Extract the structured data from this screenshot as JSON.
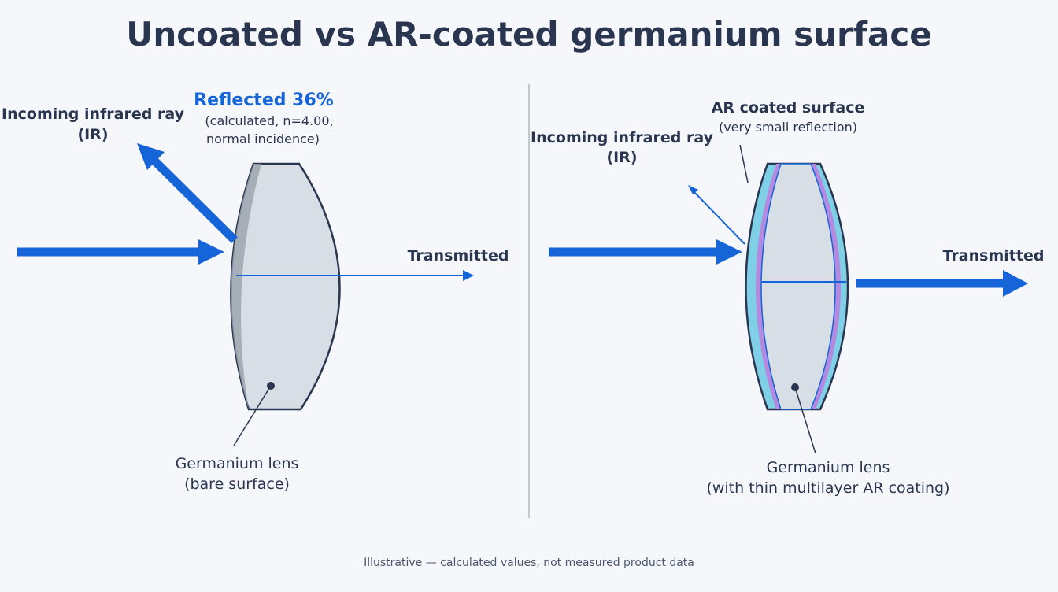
{
  "title": "Uncoated vs AR-coated germanium surface",
  "left_panel": {
    "incoming_label": [
      "Incoming infrared ray",
      "(IR)"
    ],
    "reflected_label": "Reflected 36%",
    "reflected_note": [
      "(calculated, n=4.00,",
      "normal incidence)"
    ],
    "transmitted_label": "Transmitted",
    "lens_label": [
      "Germanium lens",
      "(bare surface)"
    ]
  },
  "right_panel": {
    "incoming_label": [
      "Incoming infrared ray",
      "(IR)"
    ],
    "coating_label": "AR coated surface",
    "coating_note": "(very small reflection)",
    "transmitted_label": "Transmitted",
    "lens_label": [
      "Germanium lens",
      "(with thin multilayer AR coating)"
    ]
  },
  "footer": "Illustrative — calculated values, not measured product data"
}
